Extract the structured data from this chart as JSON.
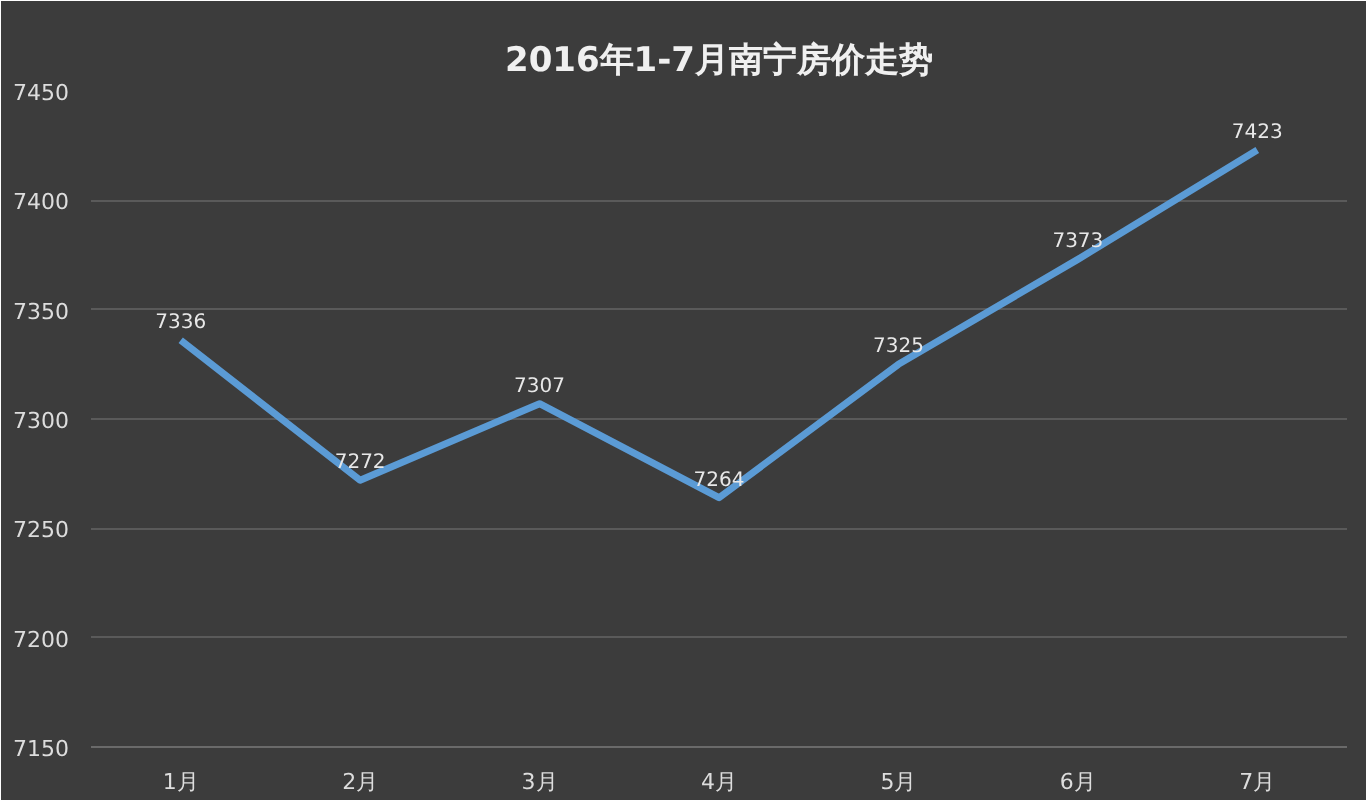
{
  "chart_data": {
    "type": "line",
    "title": "2016年1-7月南宁房价走势",
    "categories": [
      "1月",
      "2月",
      "3月",
      "4月",
      "5月",
      "6月",
      "7月"
    ],
    "series": [
      {
        "color": "#5b9bd5",
        "values": [
          7336,
          7272,
          7307,
          7264,
          7325,
          7373,
          7423
        ]
      }
    ],
    "ylim": [
      7150,
      7450
    ],
    "yticks": [
      7150,
      7200,
      7250,
      7300,
      7350,
      7400,
      7450
    ],
    "grid": "y",
    "data_labels": true,
    "line_style": "solid"
  }
}
